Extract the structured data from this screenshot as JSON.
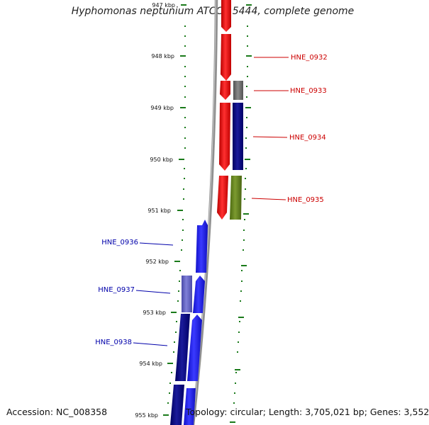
{
  "title": "Hyphomonas neptunium ATCC 15444, complete genome",
  "accession": "Accession: NC_008358",
  "summary": "Topology: circular; Length: 3,705,021 bp; Genes: 3,552",
  "colors": {
    "ruler": "#1a7a1a",
    "backbone": "#909090",
    "forward_label": "#cc0000",
    "reverse_label": "#0000aa"
  },
  "kbp_labels": [
    "947 kbp",
    "948 kbp",
    "949 kbp",
    "950 kbp",
    "951 kbp",
    "952 kbp",
    "953 kbp",
    "954 kbp",
    "955 kbp"
  ],
  "forward_gene_labels": [
    "HNE_0932",
    "HNE_0933",
    "HNE_0934",
    "HNE_0935"
  ],
  "reverse_gene_labels": [
    "HNE_0936",
    "HNE_0937",
    "HNE_0938"
  ]
}
